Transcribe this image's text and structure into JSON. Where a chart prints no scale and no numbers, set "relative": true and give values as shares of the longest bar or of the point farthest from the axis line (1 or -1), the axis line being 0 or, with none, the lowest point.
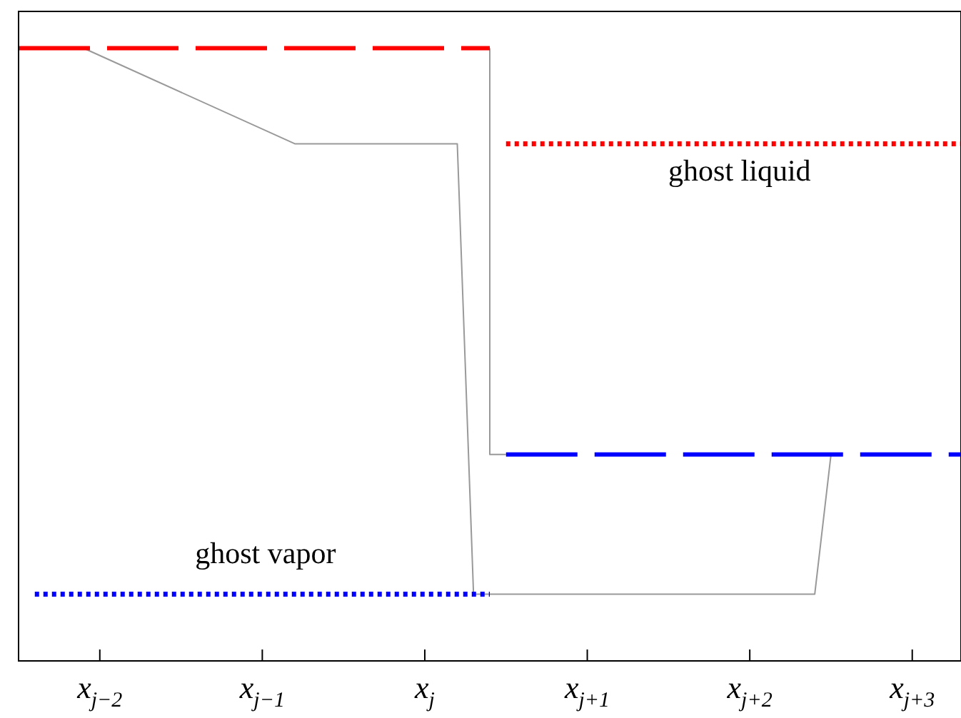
{
  "chart_data": {
    "type": "line",
    "relative": true,
    "tick_labels": "x",
    "legend": false,
    "marker": "none",
    "categories": [
      null,
      null,
      null,
      null,
      null,
      "x$_{j−2}$",
      null,
      null,
      null,
      null,
      null,
      null,
      null,
      null,
      null,
      "x$_{j−1}$",
      null,
      null,
      null,
      null,
      null,
      null,
      null,
      null,
      null,
      "x$_{j}$",
      null,
      null,
      null,
      null,
      null,
      null,
      null,
      null,
      null,
      "x$_{j+1}$",
      null,
      null,
      null,
      null,
      null,
      null,
      null,
      null,
      null,
      "x$_{j+2}$",
      null,
      null,
      null,
      null,
      null,
      null,
      null,
      null,
      null,
      "x$_{j+3}$",
      null,
      null,
      null
    ],
    "series": [
      {
        "color": "#ff0000",
        "line_style": "dashed",
        "values": [
          1,
          1,
          1,
          1,
          1,
          1,
          1,
          1,
          1,
          1,
          1,
          1,
          1,
          1,
          1,
          1,
          1,
          1,
          1,
          1,
          1,
          1,
          1,
          1,
          1,
          1,
          1,
          1,
          1,
          1,
          null,
          null,
          null,
          null,
          null,
          null,
          null,
          null,
          null,
          null,
          null,
          null,
          null,
          null,
          null,
          null,
          null,
          null,
          null,
          null,
          null,
          null,
          null,
          null,
          null,
          null,
          null,
          null,
          null
        ]
      },
      {
        "color": "#0000ff",
        "line_style": "dotted",
        "values": [
          null,
          0.109,
          0.109,
          0.109,
          0.109,
          0.109,
          0.109,
          0.109,
          0.109,
          0.109,
          0.109,
          0.109,
          0.109,
          0.109,
          0.109,
          0.109,
          0.109,
          0.109,
          0.109,
          0.109,
          0.109,
          0.109,
          0.109,
          0.109,
          0.109,
          0.109,
          0.109,
          0.109,
          0.109,
          0.109,
          null,
          null,
          null,
          null,
          null,
          null,
          null,
          null,
          null,
          null,
          null,
          null,
          null,
          null,
          null,
          null,
          null,
          null,
          null,
          null,
          null,
          null,
          null,
          null,
          null,
          null,
          null,
          null,
          null
        ]
      },
      {
        "color": "#ff0000",
        "line_style": "dotted",
        "values": [
          null,
          null,
          null,
          null,
          null,
          null,
          null,
          null,
          null,
          null,
          null,
          null,
          null,
          null,
          null,
          null,
          null,
          null,
          null,
          null,
          null,
          null,
          null,
          null,
          null,
          null,
          null,
          null,
          null,
          null,
          0.844,
          0.844,
          0.844,
          0.844,
          0.844,
          0.844,
          0.844,
          0.844,
          0.844,
          0.844,
          0.844,
          0.844,
          0.844,
          0.844,
          0.844,
          0.844,
          0.844,
          0.844,
          0.844,
          0.844,
          0.844,
          0.844,
          0.844,
          0.844,
          0.844,
          0.844,
          0.844,
          0.844,
          0.844
        ]
      },
      {
        "color": "#0000ff",
        "line_style": "dashed",
        "values": [
          null,
          null,
          null,
          null,
          null,
          null,
          null,
          null,
          null,
          null,
          null,
          null,
          null,
          null,
          null,
          null,
          null,
          null,
          null,
          null,
          null,
          null,
          null,
          null,
          null,
          null,
          null,
          null,
          null,
          null,
          0.337,
          0.337,
          0.337,
          0.337,
          0.337,
          0.337,
          0.337,
          0.337,
          0.337,
          0.337,
          0.337,
          0.337,
          0.337,
          0.337,
          0.337,
          0.337,
          0.337,
          0.337,
          0.337,
          0.337,
          0.337,
          0.337,
          0.337,
          0.337,
          0.337,
          0.337,
          0.337,
          0.337,
          0.337
        ]
      },
      {
        "type": "step",
        "color": "#999999",
        "line_style": "solid",
        "values": [
          null,
          null,
          null,
          null,
          null,
          null,
          null,
          null,
          null,
          null,
          null,
          null,
          null,
          null,
          null,
          null,
          null,
          null,
          null,
          null,
          null,
          null,
          null,
          null,
          null,
          null,
          null,
          null,
          null,
          1,
          0.337,
          null,
          null,
          null,
          null,
          null,
          null,
          null,
          null,
          null,
          null,
          null,
          null,
          null,
          null,
          null,
          null,
          null,
          null,
          null,
          null,
          null,
          null,
          null,
          null,
          null,
          null,
          null,
          null
        ]
      },
      {
        "type": "line",
        "color": "#999999",
        "line_style": "solid",
        "values": [
          null,
          null,
          null,
          null,
          1,
          null,
          null,
          null,
          null,
          null,
          null,
          null,
          null,
          null,
          null,
          null,
          null,
          0.844,
          null,
          null,
          null,
          null,
          null,
          null,
          null,
          null,
          null,
          0.844,
          0.109,
          null,
          null,
          null,
          null,
          null,
          null,
          null,
          null,
          null,
          null,
          null,
          null,
          null,
          null,
          null,
          null,
          null,
          null,
          null,
          null,
          0.109,
          0.337,
          null,
          null,
          null,
          null,
          null,
          null,
          null,
          null
        ]
      }
    ],
    "annotations": [
      "ghost liquid",
      "ghost vapor"
    ]
  }
}
